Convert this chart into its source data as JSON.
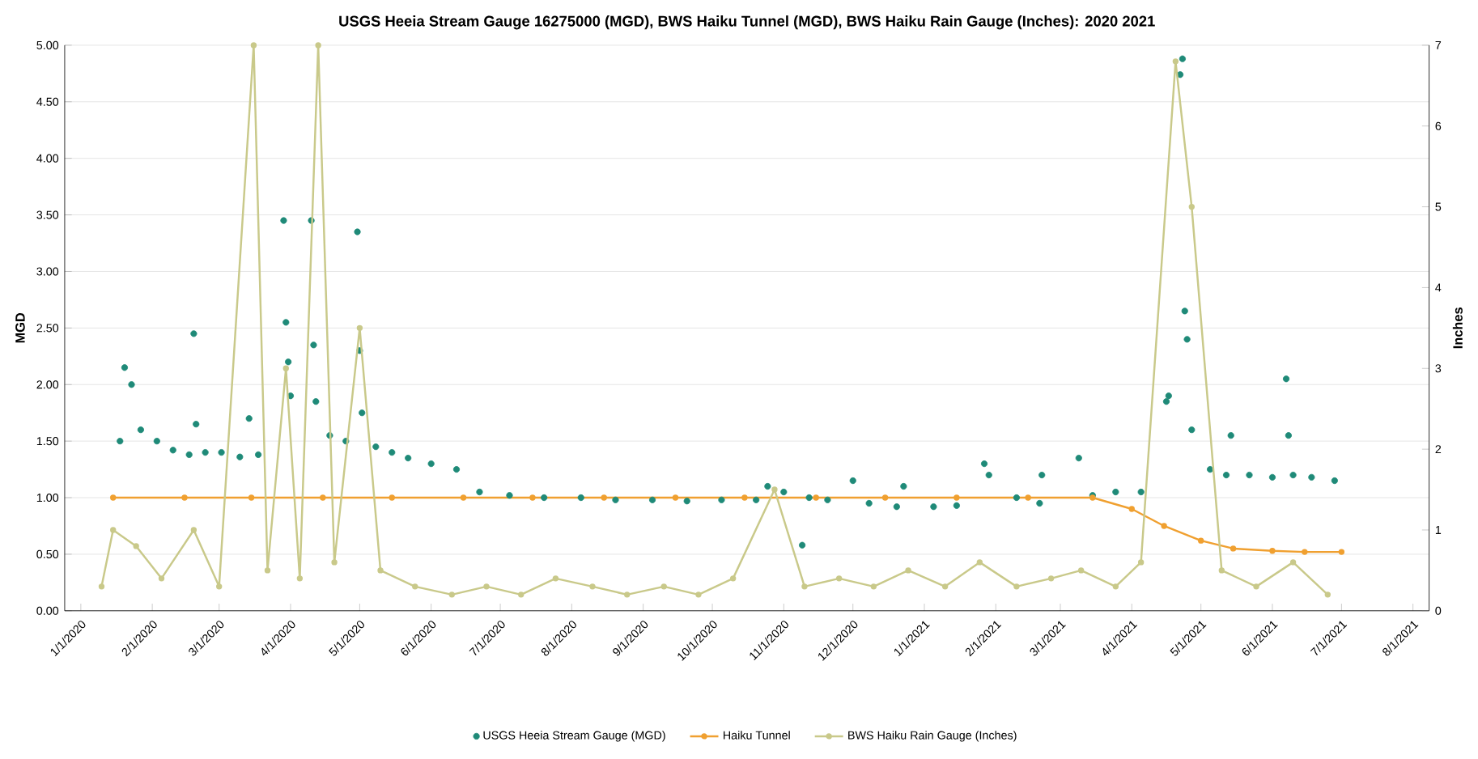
{
  "chart_data": {
    "type": "scatter",
    "title": "USGS Heeia Stream Gauge 16275000 (MGD), BWS Haiku Tunnel (MGD), BWS Haiku Rain Gauge (Inches):  2020  2021",
    "ylabel": "MGD",
    "y2label": "Inches",
    "xlim": [
      "2019-12-25",
      "2021-08-08"
    ],
    "xticks": [
      {
        "value": "2020-01-01",
        "label": "1/1/2020"
      },
      {
        "value": "2020-02-01",
        "label": "2/1/2020"
      },
      {
        "value": "2020-03-01",
        "label": "3/1/2020"
      },
      {
        "value": "2020-04-01",
        "label": "4/1/2020"
      },
      {
        "value": "2020-05-01",
        "label": "5/1/2020"
      },
      {
        "value": "2020-06-01",
        "label": "6/1/2020"
      },
      {
        "value": "2020-07-01",
        "label": "7/1/2020"
      },
      {
        "value": "2020-08-01",
        "label": "8/1/2020"
      },
      {
        "value": "2020-09-01",
        "label": "9/1/2020"
      },
      {
        "value": "2020-10-01",
        "label": "10/1/2020"
      },
      {
        "value": "2020-11-01",
        "label": "11/1/2020"
      },
      {
        "value": "2020-12-01",
        "label": "12/1/2020"
      },
      {
        "value": "2021-01-01",
        "label": "1/1/2021"
      },
      {
        "value": "2021-02-01",
        "label": "2/1/2021"
      },
      {
        "value": "2021-03-01",
        "label": "3/1/2021"
      },
      {
        "value": "2021-04-01",
        "label": "4/1/2021"
      },
      {
        "value": "2021-05-01",
        "label": "5/1/2021"
      },
      {
        "value": "2021-06-01",
        "label": "6/1/2021"
      },
      {
        "value": "2021-07-01",
        "label": "7/1/2021"
      },
      {
        "value": "2021-08-01",
        "label": "8/1/2021"
      }
    ],
    "ylim": [
      0,
      5
    ],
    "yticks": [
      {
        "value": 0,
        "label": "0.00"
      },
      {
        "value": 0.5,
        "label": "0.50"
      },
      {
        "value": 1,
        "label": "1.00"
      },
      {
        "value": 1.5,
        "label": "1.50"
      },
      {
        "value": 2,
        "label": "2.00"
      },
      {
        "value": 2.5,
        "label": "2.50"
      },
      {
        "value": 3,
        "label": "3.00"
      },
      {
        "value": 3.5,
        "label": "3.50"
      },
      {
        "value": 4,
        "label": "4.00"
      },
      {
        "value": 4.5,
        "label": "4.50"
      },
      {
        "value": 5,
        "label": "5.00"
      }
    ],
    "y2lim": [
      0,
      7
    ],
    "y2ticks": [
      0,
      1,
      2,
      3,
      4,
      5,
      6,
      7
    ],
    "grid": "y",
    "legend": "bottom",
    "marker": "circle",
    "series": [
      {
        "name": "USGS Heeia Stream Gauge (MGD)",
        "color": "#1f8a78",
        "x": [
          "2020-01-18",
          "2020-01-20",
          "2020-01-23",
          "2020-01-27",
          "2020-02-03",
          "2020-02-10",
          "2020-02-17",
          "2020-02-19",
          "2020-02-20",
          "2020-02-24",
          "2020-03-02",
          "2020-03-10",
          "2020-03-14",
          "2020-03-18",
          "2020-03-29",
          "2020-03-30",
          "2020-03-31",
          "2020-04-01",
          "2020-04-10",
          "2020-04-11",
          "2020-04-12",
          "2020-04-18",
          "2020-04-25",
          "2020-04-30",
          "2020-05-01",
          "2020-05-02",
          "2020-05-08",
          "2020-05-15",
          "2020-05-22",
          "2020-06-01",
          "2020-06-12",
          "2020-06-22",
          "2020-07-05",
          "2020-07-20",
          "2020-08-05",
          "2020-08-20",
          "2020-09-05",
          "2020-09-20",
          "2020-10-05",
          "2020-10-20",
          "2020-10-25",
          "2020-11-01",
          "2020-11-09",
          "2020-11-12",
          "2020-11-20",
          "2020-12-01",
          "2020-12-08",
          "2020-12-20",
          "2020-12-23",
          "2021-01-05",
          "2021-01-15",
          "2021-01-27",
          "2021-01-29",
          "2021-02-10",
          "2021-02-20",
          "2021-02-21",
          "2021-03-09",
          "2021-03-15",
          "2021-03-25",
          "2021-04-05",
          "2021-04-16",
          "2021-04-17",
          "2021-04-22",
          "2021-04-23",
          "2021-04-24",
          "2021-04-25",
          "2021-04-27",
          "2021-05-05",
          "2021-05-12",
          "2021-05-14",
          "2021-05-22",
          "2021-06-01",
          "2021-06-07",
          "2021-06-08",
          "2021-06-10",
          "2021-06-18",
          "2021-06-28"
        ],
        "values": [
          1.5,
          2.15,
          2.0,
          1.6,
          1.5,
          1.42,
          1.38,
          2.45,
          1.65,
          1.4,
          1.4,
          1.36,
          1.7,
          1.38,
          3.45,
          2.55,
          2.2,
          1.9,
          3.45,
          2.35,
          1.85,
          1.55,
          1.5,
          3.35,
          2.3,
          1.75,
          1.45,
          1.4,
          1.35,
          1.3,
          1.25,
          1.05,
          1.02,
          1.0,
          1.0,
          0.98,
          0.98,
          0.97,
          0.98,
          0.98,
          1.1,
          1.05,
          0.58,
          1.0,
          0.98,
          1.15,
          0.95,
          0.92,
          1.1,
          0.92,
          0.93,
          1.3,
          1.2,
          1.0,
          0.95,
          1.2,
          1.35,
          1.02,
          1.05,
          1.05,
          1.85,
          1.9,
          4.74,
          4.88,
          2.65,
          2.4,
          1.6,
          1.25,
          1.2,
          1.55,
          1.2,
          1.18,
          2.05,
          1.55,
          1.2,
          1.18,
          1.15
        ]
      },
      {
        "name": "Haiku Tunnel",
        "type": "line",
        "color": "#f0a030",
        "x": [
          "2020-01-15",
          "2020-02-15",
          "2020-03-15",
          "2020-04-15",
          "2020-05-15",
          "2020-06-15",
          "2020-07-15",
          "2020-08-15",
          "2020-09-15",
          "2020-10-15",
          "2020-11-15",
          "2020-12-15",
          "2021-01-15",
          "2021-02-15",
          "2021-03-15",
          "2021-04-01",
          "2021-04-15",
          "2021-05-01",
          "2021-05-15",
          "2021-06-01",
          "2021-06-15",
          "2021-07-01"
        ],
        "values": [
          1.0,
          1.0,
          1.0,
          1.0,
          1.0,
          1.0,
          1.0,
          1.0,
          1.0,
          1.0,
          1.0,
          1.0,
          1.0,
          1.0,
          1.0,
          0.9,
          0.75,
          0.62,
          0.55,
          0.53,
          0.52,
          0.52
        ]
      },
      {
        "name": "BWS Haiku Rain Gauge (Inches)",
        "type": "line",
        "axis": "y2",
        "color": "#c9c98a",
        "x": [
          "2020-01-10",
          "2020-01-15",
          "2020-01-25",
          "2020-02-05",
          "2020-02-19",
          "2020-03-01",
          "2020-03-16",
          "2020-03-22",
          "2020-03-30",
          "2020-04-05",
          "2020-04-13",
          "2020-04-20",
          "2020-05-01",
          "2020-05-10",
          "2020-05-25",
          "2020-06-10",
          "2020-06-25",
          "2020-07-10",
          "2020-07-25",
          "2020-08-10",
          "2020-08-25",
          "2020-09-10",
          "2020-09-25",
          "2020-10-10",
          "2020-10-28",
          "2020-11-10",
          "2020-11-25",
          "2020-12-10",
          "2020-12-25",
          "2021-01-10",
          "2021-01-25",
          "2021-02-10",
          "2021-02-25",
          "2021-03-10",
          "2021-03-25",
          "2021-04-05",
          "2021-04-20",
          "2021-04-27",
          "2021-05-10",
          "2021-05-25",
          "2021-06-10",
          "2021-06-25"
        ],
        "values": [
          0.3,
          1.0,
          0.8,
          0.4,
          1.0,
          0.3,
          7.0,
          0.5,
          3.0,
          0.4,
          7.0,
          0.6,
          3.5,
          0.5,
          0.3,
          0.2,
          0.3,
          0.2,
          0.4,
          0.3,
          0.2,
          0.3,
          0.2,
          0.4,
          1.5,
          0.3,
          0.4,
          0.3,
          0.5,
          0.3,
          0.6,
          0.3,
          0.4,
          0.5,
          0.3,
          0.6,
          6.8,
          5.0,
          0.5,
          0.3,
          0.6,
          0.2
        ]
      }
    ]
  }
}
